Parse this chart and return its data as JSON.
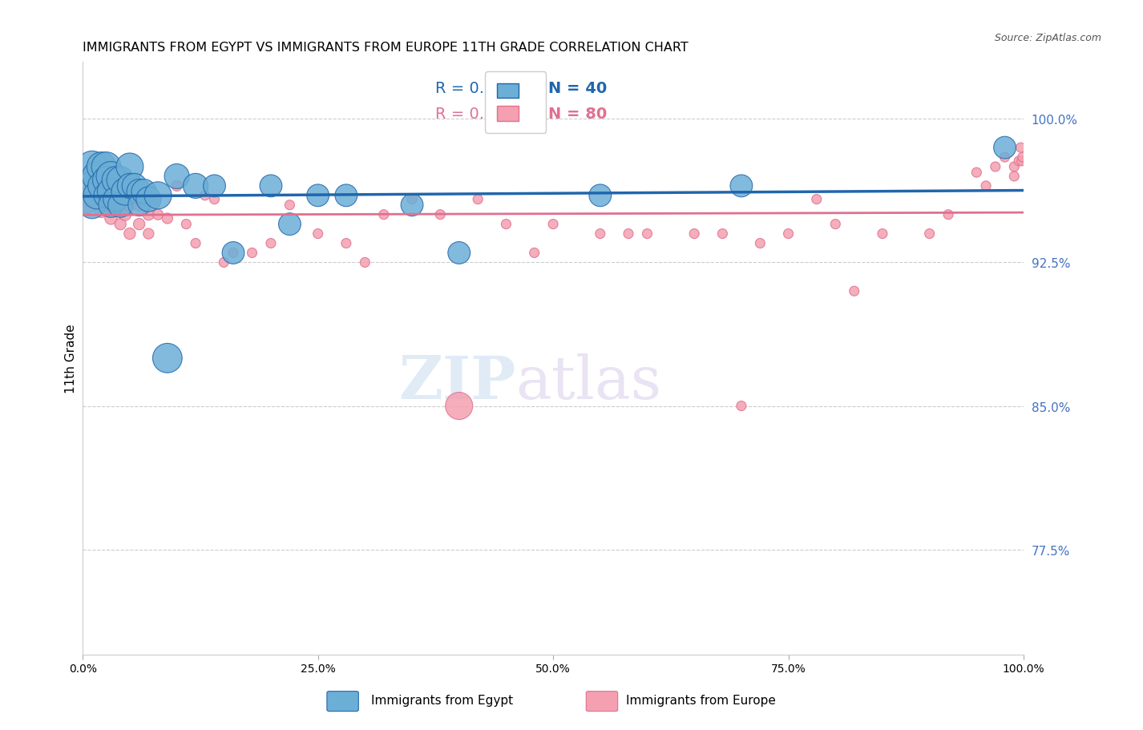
{
  "title": "IMMIGRANTS FROM EGYPT VS IMMIGRANTS FROM EUROPE 11TH GRADE CORRELATION CHART",
  "source": "Source: ZipAtlas.com",
  "ylabel": "11th Grade",
  "ytick_labels": [
    "100.0%",
    "92.5%",
    "85.0%",
    "77.5%"
  ],
  "ytick_values": [
    1.0,
    0.925,
    0.85,
    0.775
  ],
  "xmin": 0.0,
  "xmax": 1.0,
  "ymin": 0.72,
  "ymax": 1.03,
  "legend_blue_r": "R = 0.317",
  "legend_blue_n": "N = 40",
  "legend_pink_r": "R = 0.383",
  "legend_pink_n": "N = 80",
  "blue_color": "#6baed6",
  "pink_color": "#f4a0b0",
  "blue_line_color": "#2166ac",
  "pink_line_color": "#e07090",
  "watermark_zip": "ZIP",
  "watermark_atlas": "atlas",
  "blue_scatter_x": [
    0.01,
    0.01,
    0.01,
    0.015,
    0.015,
    0.02,
    0.02,
    0.025,
    0.025,
    0.025,
    0.03,
    0.03,
    0.03,
    0.035,
    0.035,
    0.04,
    0.04,
    0.045,
    0.05,
    0.05,
    0.055,
    0.06,
    0.06,
    0.065,
    0.07,
    0.08,
    0.09,
    0.1,
    0.12,
    0.14,
    0.16,
    0.2,
    0.22,
    0.25,
    0.28,
    0.35,
    0.4,
    0.55,
    0.7,
    0.98
  ],
  "blue_scatter_y": [
    0.975,
    0.965,
    0.955,
    0.97,
    0.96,
    0.975,
    0.965,
    0.975,
    0.968,
    0.96,
    0.97,
    0.962,
    0.955,
    0.968,
    0.958,
    0.968,
    0.955,
    0.962,
    0.975,
    0.965,
    0.965,
    0.962,
    0.955,
    0.962,
    0.958,
    0.96,
    0.875,
    0.97,
    0.965,
    0.965,
    0.93,
    0.965,
    0.945,
    0.96,
    0.96,
    0.955,
    0.93,
    0.96,
    0.965,
    0.985
  ],
  "blue_scatter_sizes": [
    40,
    35,
    30,
    35,
    30,
    35,
    30,
    35,
    30,
    25,
    35,
    30,
    25,
    30,
    25,
    30,
    25,
    30,
    30,
    25,
    25,
    25,
    20,
    25,
    25,
    30,
    35,
    25,
    25,
    20,
    20,
    20,
    20,
    20,
    20,
    20,
    20,
    20,
    20,
    20
  ],
  "pink_scatter_x": [
    0.005,
    0.008,
    0.01,
    0.012,
    0.015,
    0.015,
    0.018,
    0.02,
    0.02,
    0.02,
    0.022,
    0.025,
    0.025,
    0.028,
    0.03,
    0.03,
    0.03,
    0.035,
    0.035,
    0.038,
    0.04,
    0.04,
    0.04,
    0.045,
    0.045,
    0.05,
    0.05,
    0.055,
    0.06,
    0.06,
    0.07,
    0.07,
    0.075,
    0.08,
    0.09,
    0.1,
    0.11,
    0.12,
    0.13,
    0.14,
    0.15,
    0.16,
    0.18,
    0.2,
    0.22,
    0.25,
    0.28,
    0.3,
    0.32,
    0.35,
    0.38,
    0.4,
    0.42,
    0.45,
    0.48,
    0.5,
    0.55,
    0.58,
    0.6,
    0.65,
    0.68,
    0.7,
    0.72,
    0.75,
    0.78,
    0.8,
    0.82,
    0.85,
    0.9,
    0.92,
    0.95,
    0.96,
    0.97,
    0.98,
    0.99,
    0.99,
    0.995,
    0.997,
    0.998,
    0.999
  ],
  "pink_scatter_y": [
    0.955,
    0.962,
    0.958,
    0.965,
    0.968,
    0.96,
    0.965,
    0.968,
    0.96,
    0.952,
    0.965,
    0.962,
    0.955,
    0.962,
    0.965,
    0.955,
    0.948,
    0.962,
    0.955,
    0.958,
    0.962,
    0.952,
    0.945,
    0.958,
    0.95,
    0.955,
    0.94,
    0.958,
    0.955,
    0.945,
    0.95,
    0.94,
    0.958,
    0.95,
    0.948,
    0.965,
    0.945,
    0.935,
    0.96,
    0.958,
    0.925,
    0.93,
    0.93,
    0.935,
    0.955,
    0.94,
    0.935,
    0.925,
    0.95,
    0.958,
    0.95,
    0.85,
    0.958,
    0.945,
    0.93,
    0.945,
    0.94,
    0.94,
    0.94,
    0.94,
    0.94,
    0.85,
    0.935,
    0.94,
    0.958,
    0.945,
    0.91,
    0.94,
    0.94,
    0.95,
    0.972,
    0.965,
    0.975,
    0.98,
    0.975,
    0.97,
    0.978,
    0.985,
    0.978,
    0.98
  ],
  "pink_scatter_sizes": [
    80,
    70,
    65,
    60,
    60,
    55,
    60,
    55,
    50,
    50,
    55,
    50,
    45,
    50,
    55,
    45,
    40,
    50,
    45,
    45,
    45,
    40,
    35,
    40,
    40,
    40,
    35,
    40,
    40,
    35,
    35,
    30,
    35,
    30,
    30,
    30,
    25,
    25,
    25,
    25,
    25,
    25,
    25,
    25,
    25,
    25,
    25,
    25,
    25,
    25,
    25,
    200,
    25,
    25,
    25,
    25,
    25,
    25,
    25,
    25,
    25,
    25,
    25,
    25,
    25,
    25,
    25,
    25,
    25,
    25,
    25,
    25,
    25,
    25,
    25,
    25,
    25,
    25,
    25,
    25
  ]
}
